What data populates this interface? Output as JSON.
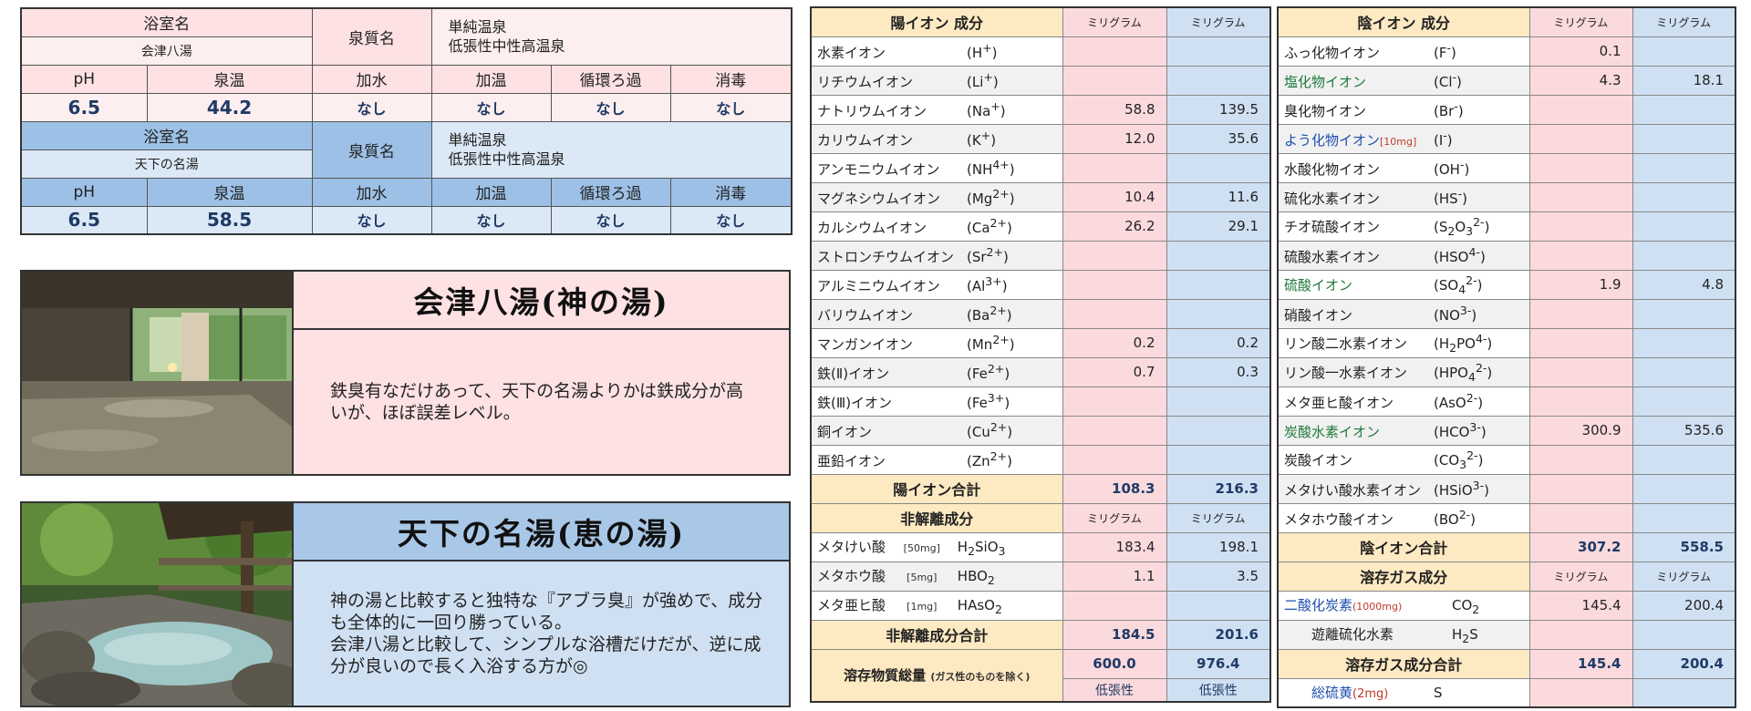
{
  "spec": {
    "room_label": "浴室名",
    "quality_label": "泉質名",
    "headers": [
      "pH",
      "泉温",
      "加水",
      "加温",
      "循環ろ過",
      "消毒"
    ],
    "onsen": [
      {
        "room": "会津八湯",
        "quality": [
          "単純温泉",
          "低張性中性高温泉"
        ],
        "values": [
          "6.5",
          "44.2",
          "なし",
          "なし",
          "なし",
          "なし"
        ]
      },
      {
        "room": "天下の名湯",
        "quality": [
          "単純温泉",
          "低張性中性高温泉"
        ],
        "values": [
          "6.5",
          "58.5",
          "なし",
          "なし",
          "なし",
          "なし"
        ]
      }
    ]
  },
  "cards": [
    {
      "title": "会津八湯(神の湯)",
      "desc": [
        "鉄臭有なだけあって、天下の名湯よりかは鉄成分が高",
        "いが、ほぼ誤差レベル。"
      ]
    },
    {
      "title": "天下の名湯(恵の湯)",
      "desc": [
        "神の湯と比較すると独特な『アブラ臭』が強めで、成分",
        "も全体的に一回り勝っている。",
        "会津八湯と比較して、シンプルな浴槽だけだが、逆に成",
        "分が良いので長く入浴する方が◎"
      ]
    }
  ],
  "unit": "ミリグラム",
  "cation": {
    "header": "陽イオン 成分",
    "rows": [
      {
        "name": "水素イオン",
        "formula": "(H+)",
        "a": "",
        "b": ""
      },
      {
        "name": "リチウムイオン",
        "formula": "(Li+)",
        "a": "",
        "b": ""
      },
      {
        "name": "ナトリウムイオン",
        "formula": "(Na+)",
        "a": "58.8",
        "b": "139.5"
      },
      {
        "name": "カリウムイオン",
        "formula": "(K+)",
        "a": "12.0",
        "b": "35.6"
      },
      {
        "name": "アンモニウムイオン",
        "formula": "(NH4+)",
        "a": "",
        "b": ""
      },
      {
        "name": "マグネシウムイオン",
        "formula": "(Mg2+)",
        "a": "10.4",
        "b": "11.6"
      },
      {
        "name": "カルシウムイオン",
        "formula": "(Ca2+)",
        "a": "26.2",
        "b": "29.1"
      },
      {
        "name": "ストロンチウムイオン",
        "formula": "(Sr2+)",
        "a": "",
        "b": ""
      },
      {
        "name": "アルミニウムイオン",
        "formula": "(Al3+)",
        "a": "",
        "b": ""
      },
      {
        "name": "バリウムイオン",
        "formula": "(Ba2+)",
        "a": "",
        "b": ""
      },
      {
        "name": "マンガンイオン",
        "formula": "(Mn2+)",
        "a": "0.2",
        "b": "0.2"
      },
      {
        "name": "鉄(Ⅱ)イオン",
        "formula": "(Fe2+)",
        "a": "0.7",
        "b": "0.3"
      },
      {
        "name": "鉄(Ⅲ)イオン",
        "formula": "(Fe3+)",
        "a": "",
        "b": ""
      },
      {
        "name": "銅イオン",
        "formula": "(Cu2+)",
        "a": "",
        "b": ""
      },
      {
        "name": "亜鉛イオン",
        "formula": "(Zn2+)",
        "a": "",
        "b": ""
      }
    ],
    "total_label": "陽イオン合計",
    "total_a": "108.3",
    "total_b": "216.3",
    "nondiss_header": "非解離成分",
    "nondiss": [
      {
        "name": "メタけい酸",
        "note": "[50mg]",
        "formula": "H2SiO3",
        "a": "183.4",
        "b": "198.1"
      },
      {
        "name": "メタホウ酸",
        "note": "[5mg]",
        "formula": "HBO2",
        "a": "1.1",
        "b": "3.5"
      },
      {
        "name": "メタ亜ヒ酸",
        "note": "[1mg]",
        "formula": "HAsO2",
        "a": "",
        "b": ""
      }
    ],
    "nondiss_total_label": "非解離成分合計",
    "nondiss_total_a": "184.5",
    "nondiss_total_b": "201.6",
    "dissolved_label": "溶存物質総量",
    "dissolved_note": "(ガス性のものを除く)",
    "dissolved_a": "600.0",
    "dissolved_b": "976.4",
    "tonicity_a": "低張性",
    "tonicity_b": "低張性"
  },
  "anion": {
    "header": "陰イオン 成分",
    "rows": [
      {
        "name": "ふっ化物イオン",
        "formula": "(F-)",
        "a": "0.1",
        "b": "",
        "color": ""
      },
      {
        "name": "塩化物イオン",
        "formula": "(Cl-)",
        "a": "4.3",
        "b": "18.1",
        "color": "g"
      },
      {
        "name": "臭化物イオン",
        "formula": "(Br-)",
        "a": "",
        "b": "",
        "color": ""
      },
      {
        "name": "よう化物イオン",
        "note": "[10mg]",
        "formula": "(I-)",
        "a": "",
        "b": "",
        "color": "b"
      },
      {
        "name": "水酸化物イオン",
        "formula": "(OH-)",
        "a": "",
        "b": "",
        "color": ""
      },
      {
        "name": "硫化水素イオン",
        "formula": "(HS-)",
        "a": "",
        "b": "",
        "color": ""
      },
      {
        "name": "チオ硫酸イオン",
        "formula": "(S2O32-)",
        "a": "",
        "b": "",
        "color": ""
      },
      {
        "name": "硫酸水素イオン",
        "formula": "(HSO4-)",
        "a": "",
        "b": "",
        "color": ""
      },
      {
        "name": "硫酸イオン",
        "formula": "(SO42-)",
        "a": "1.9",
        "b": "4.8",
        "color": "g"
      },
      {
        "name": "硝酸イオン",
        "formula": "(NO3-)",
        "a": "",
        "b": "",
        "color": ""
      },
      {
        "name": "リン酸二水素イオン",
        "formula": "(H2PO4-)",
        "a": "",
        "b": "",
        "color": ""
      },
      {
        "name": "リン酸一水素イオン",
        "formula": "(HPO42-)",
        "a": "",
        "b": "",
        "color": ""
      },
      {
        "name": "メタ亜ヒ酸イオン",
        "formula": "(AsO2-)",
        "a": "",
        "b": "",
        "color": ""
      },
      {
        "name": "炭酸水素イオン",
        "formula": "(HCO3-)",
        "a": "300.9",
        "b": "535.6",
        "color": "g"
      },
      {
        "name": "炭酸イオン",
        "formula": "(CO32-)",
        "a": "",
        "b": "",
        "color": ""
      },
      {
        "name": "メタけい酸水素イオン",
        "formula": "(HSiO3-)",
        "a": "",
        "b": "",
        "color": ""
      },
      {
        "name": "メタホウ酸イオン",
        "formula": "(BO2-)",
        "a": "",
        "b": "",
        "color": ""
      }
    ],
    "total_label": "陰イオン合計",
    "total_a": "307.2",
    "total_b": "558.5",
    "gas_header": "溶存ガス成分",
    "gas": [
      {
        "name": "二酸化炭素",
        "note": "(1000mg)",
        "formula": "CO2",
        "a": "145.4",
        "b": "200.4"
      },
      {
        "name": "遊離硫化水素",
        "note": "",
        "formula": "H2S",
        "a": "",
        "b": ""
      }
    ],
    "gas_total_label": "溶存ガス成分合計",
    "gas_total_a": "145.4",
    "gas_total_b": "200.4",
    "sulfur_label": "総硫黄",
    "sulfur_note": "(2mg)",
    "sulfur_formula": "S"
  }
}
